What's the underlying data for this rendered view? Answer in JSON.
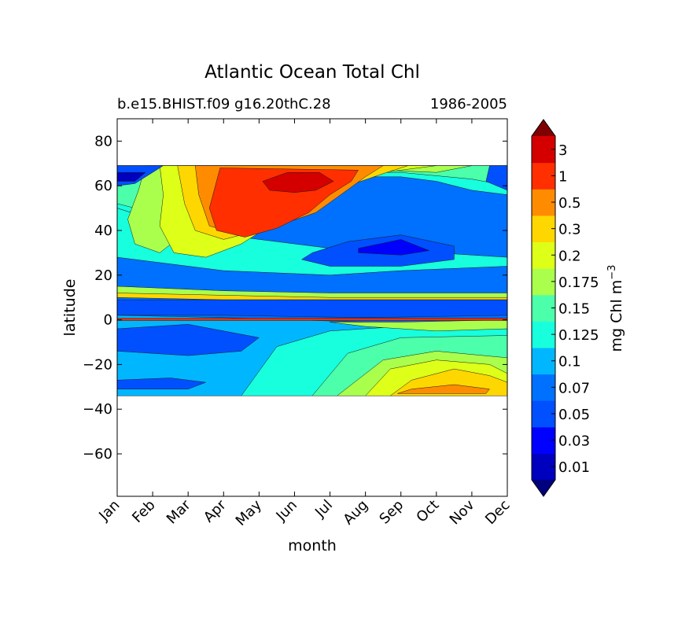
{
  "chart_data": {
    "type": "heatmap",
    "title": "Atlantic Ocean Total Chl",
    "subtitle_left": "b.e15.BHIST.f09 g16.20thC.28",
    "subtitle_right": "1986-2005",
    "xlabel": "month",
    "ylabel": "latitude",
    "x_ticks": [
      "Jan",
      "Feb",
      "Mar",
      "Apr",
      "May",
      "Jun",
      "Jul",
      "Aug",
      "Sep",
      "Oct",
      "Nov",
      "Dec"
    ],
    "y_ticks": [
      80,
      60,
      40,
      20,
      0,
      -20,
      -40,
      -60
    ],
    "y_tick_labels": [
      "80",
      "60",
      "40",
      "20",
      "0",
      "−20",
      "−40",
      "−60"
    ],
    "ylim": [
      -79,
      90
    ],
    "xlim": [
      1,
      12
    ],
    "data_lat_range": [
      -34,
      69
    ],
    "colorbar": {
      "label": "mg Chl m",
      "label_superscript": "−3",
      "levels": [
        0.01,
        0.03,
        0.05,
        0.07,
        0.1,
        0.125,
        0.15,
        0.175,
        0.2,
        0.3,
        0.5,
        1,
        3
      ],
      "tick_labels": [
        "0.01",
        "0.03",
        "0.05",
        "0.07",
        "0.1",
        "0.125",
        "0.15",
        "0.175",
        "0.2",
        "0.3",
        "0.5",
        "1",
        "3"
      ],
      "colors": [
        "#00007f",
        "#0000bf",
        "#0000ff",
        "#0050ff",
        "#0070ff",
        "#00b7ff",
        "#18ffdd",
        "#4cffaa",
        "#aaff4c",
        "#ddff18",
        "#ffd700",
        "#ff8c00",
        "#ff2f00",
        "#d40000",
        "#7f0000"
      ],
      "extend": "both"
    },
    "regions": [
      {
        "level": 4,
        "points": [
          [
            1,
            69
          ],
          [
            12,
            69
          ],
          [
            12,
            -34
          ],
          [
            1,
            -34
          ]
        ]
      },
      {
        "level": 5,
        "points": [
          [
            1,
            2
          ],
          [
            4,
            1
          ],
          [
            8,
            -1
          ],
          [
            12,
            -3
          ],
          [
            12,
            -34
          ],
          [
            1,
            -34
          ]
        ]
      },
      {
        "level": 6,
        "points": [
          [
            4.5,
            -34
          ],
          [
            5.5,
            -12
          ],
          [
            7,
            -5
          ],
          [
            9,
            -3
          ],
          [
            12,
            -4
          ],
          [
            12,
            -34
          ]
        ]
      },
      {
        "level": 7,
        "points": [
          [
            6.5,
            -34
          ],
          [
            7.5,
            -15
          ],
          [
            9,
            -8
          ],
          [
            12,
            -7
          ],
          [
            12,
            -34
          ]
        ]
      },
      {
        "level": 8,
        "points": [
          [
            7.2,
            -34
          ],
          [
            8.5,
            -18
          ],
          [
            10,
            -14
          ],
          [
            12,
            -17
          ],
          [
            12,
            -34
          ]
        ]
      },
      {
        "level": 9,
        "points": [
          [
            8,
            -34
          ],
          [
            8.7,
            -22
          ],
          [
            10,
            -18
          ],
          [
            11.5,
            -20
          ],
          [
            12,
            -24
          ],
          [
            12,
            -34
          ]
        ]
      },
      {
        "level": 10,
        "points": [
          [
            8.7,
            -34
          ],
          [
            9.3,
            -27
          ],
          [
            10.5,
            -22
          ],
          [
            11.5,
            -25
          ],
          [
            12,
            -28
          ],
          [
            12,
            -34
          ]
        ]
      },
      {
        "level": 11,
        "points": [
          [
            8.9,
            -33
          ],
          [
            9.3,
            -31
          ],
          [
            10.5,
            -29
          ],
          [
            11.5,
            -31
          ],
          [
            11.4,
            -33
          ]
        ]
      },
      {
        "level": 3,
        "points": [
          [
            1,
            -4
          ],
          [
            3,
            -2
          ],
          [
            5,
            -8
          ],
          [
            4.5,
            -14
          ],
          [
            3,
            -16
          ],
          [
            1,
            -14
          ]
        ]
      },
      {
        "level": 3,
        "points": [
          [
            1,
            -27
          ],
          [
            2.5,
            -26
          ],
          [
            3.5,
            -28
          ],
          [
            3,
            -31
          ],
          [
            1,
            -31
          ]
        ]
      },
      {
        "level": 8,
        "points": [
          [
            7,
            -1
          ],
          [
            9,
            -1
          ],
          [
            12,
            0
          ],
          [
            12,
            -4
          ],
          [
            10,
            -5
          ],
          [
            8,
            -3
          ]
        ]
      },
      {
        "level": 6,
        "points": [
          [
            1,
            28
          ],
          [
            4,
            22
          ],
          [
            7,
            20
          ],
          [
            9,
            22
          ],
          [
            12,
            24
          ],
          [
            12,
            28
          ],
          [
            10,
            30
          ],
          [
            7,
            32
          ],
          [
            4,
            38
          ],
          [
            2,
            45
          ],
          [
            1,
            50
          ]
        ]
      },
      {
        "level": 6,
        "points": [
          [
            1,
            69
          ],
          [
            12,
            69
          ],
          [
            12,
            56
          ],
          [
            11,
            58
          ],
          [
            10,
            62
          ],
          [
            9,
            64
          ],
          [
            7,
            64
          ],
          [
            5,
            60
          ],
          [
            3,
            50
          ],
          [
            2,
            45
          ],
          [
            1,
            50
          ]
        ]
      },
      {
        "level": 7,
        "points": [
          [
            1,
            69
          ],
          [
            12,
            69
          ],
          [
            12,
            60
          ],
          [
            11,
            63
          ],
          [
            9,
            66
          ],
          [
            7,
            66
          ],
          [
            5,
            62
          ],
          [
            3,
            54
          ],
          [
            2,
            48
          ],
          [
            1,
            52
          ]
        ]
      },
      {
        "level": 8,
        "points": [
          [
            1.8,
            69
          ],
          [
            11,
            69
          ],
          [
            10,
            66
          ],
          [
            8.5,
            67
          ],
          [
            6.5,
            64
          ],
          [
            5,
            60
          ],
          [
            3.8,
            52
          ],
          [
            3,
            40
          ],
          [
            2.2,
            30
          ],
          [
            1.5,
            34
          ],
          [
            1.3,
            45
          ],
          [
            1.6,
            58
          ]
        ]
      },
      {
        "level": 9,
        "points": [
          [
            2.2,
            69
          ],
          [
            10,
            69
          ],
          [
            9,
            67
          ],
          [
            7.5,
            64
          ],
          [
            6.5,
            54
          ],
          [
            5.5,
            44
          ],
          [
            4.5,
            34
          ],
          [
            3.5,
            28
          ],
          [
            2.6,
            30
          ],
          [
            2.2,
            42
          ],
          [
            2.3,
            56
          ]
        ]
      },
      {
        "level": 10,
        "points": [
          [
            2.7,
            69
          ],
          [
            9.2,
            69
          ],
          [
            8.6,
            66
          ],
          [
            7.5,
            60
          ],
          [
            6,
            48
          ],
          [
            5,
            40
          ],
          [
            4,
            36
          ],
          [
            3.2,
            40
          ],
          [
            2.9,
            52
          ]
        ]
      },
      {
        "level": 11,
        "points": [
          [
            3.2,
            69
          ],
          [
            8.5,
            69
          ],
          [
            8,
            64
          ],
          [
            7.3,
            56
          ],
          [
            6.6,
            48
          ],
          [
            5.5,
            42
          ],
          [
            4.5,
            38
          ],
          [
            3.6,
            42
          ],
          [
            3.3,
            56
          ]
        ]
      },
      {
        "level": 12,
        "points": [
          [
            3.9,
            68
          ],
          [
            7.8,
            67
          ],
          [
            7.6,
            62
          ],
          [
            7,
            56
          ],
          [
            6.4,
            48
          ],
          [
            5.5,
            41
          ],
          [
            4.6,
            37
          ],
          [
            3.8,
            40
          ],
          [
            3.6,
            50
          ]
        ]
      },
      {
        "level": 13,
        "points": [
          [
            5.8,
            66
          ],
          [
            6.7,
            66
          ],
          [
            7.1,
            62
          ],
          [
            6.6,
            58
          ],
          [
            6,
            57
          ],
          [
            5.3,
            58
          ],
          [
            5.1,
            62
          ]
        ]
      },
      {
        "level": 3,
        "points": [
          [
            1,
            69
          ],
          [
            2.3,
            69
          ],
          [
            2,
            66
          ],
          [
            1.5,
            61
          ],
          [
            1,
            60
          ]
        ]
      },
      {
        "level": 1,
        "points": [
          [
            1,
            66
          ],
          [
            1.8,
            66
          ],
          [
            1.5,
            62
          ],
          [
            1,
            62
          ]
        ]
      },
      {
        "level": 3,
        "points": [
          [
            11.5,
            69
          ],
          [
            12,
            69
          ],
          [
            12,
            58
          ],
          [
            11.4,
            62
          ]
        ]
      },
      {
        "level": 3,
        "points": [
          [
            6.5,
            30
          ],
          [
            7.5,
            35
          ],
          [
            9,
            38
          ],
          [
            10.5,
            33
          ],
          [
            10.5,
            27
          ],
          [
            9,
            24
          ],
          [
            7,
            24
          ],
          [
            6.2,
            27
          ]
        ]
      },
      {
        "level": 2,
        "points": [
          [
            7.8,
            32
          ],
          [
            9,
            36
          ],
          [
            9.8,
            31
          ],
          [
            9,
            29
          ],
          [
            7.8,
            30
          ]
        ]
      },
      {
        "level": 8,
        "points": [
          [
            1,
            15
          ],
          [
            4,
            13
          ],
          [
            7,
            12
          ],
          [
            12,
            12
          ],
          [
            12,
            9
          ],
          [
            7,
            9
          ],
          [
            4,
            10
          ],
          [
            1,
            10
          ]
        ]
      },
      {
        "level": 10,
        "points": [
          [
            1,
            12
          ],
          [
            4,
            11
          ],
          [
            7,
            10
          ],
          [
            12,
            10
          ],
          [
            12,
            9
          ],
          [
            7,
            9
          ],
          [
            4,
            9
          ],
          [
            1,
            10
          ]
        ]
      },
      {
        "level": 3,
        "points": [
          [
            1,
            9
          ],
          [
            12,
            9
          ],
          [
            12,
            2
          ],
          [
            8,
            1
          ],
          [
            4,
            2
          ],
          [
            1,
            2
          ]
        ]
      },
      {
        "level": 12,
        "points": [
          [
            1,
            0.7
          ],
          [
            12,
            0.7
          ],
          [
            12,
            -0.3
          ],
          [
            1,
            -0.3
          ]
        ]
      }
    ]
  }
}
